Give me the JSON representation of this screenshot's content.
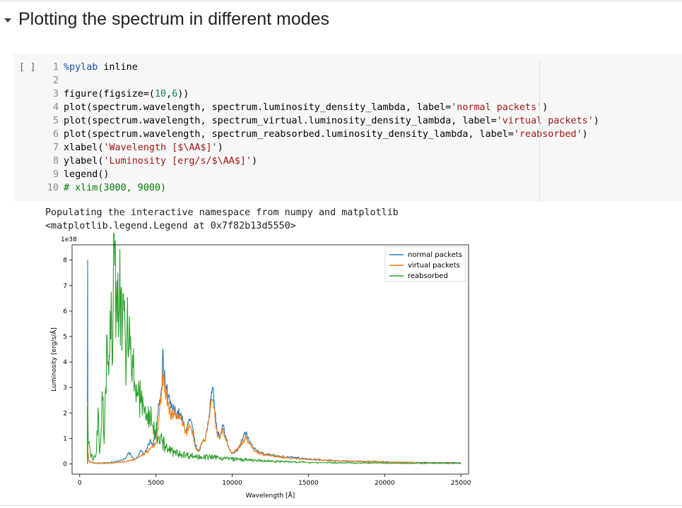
{
  "section": {
    "title": "Plotting the spectrum in different modes"
  },
  "code_cell": {
    "run_label": "[ ]",
    "lines": [
      {
        "n": "1",
        "parts": [
          {
            "t": "%pylab",
            "c": "#1a4fb0"
          },
          {
            "t": " inline",
            "c": "#000000"
          }
        ]
      },
      {
        "n": "2",
        "parts": []
      },
      {
        "n": "3",
        "parts": [
          {
            "t": "figure(figsize=(",
            "c": "#000000"
          },
          {
            "t": "10",
            "c": "#098658"
          },
          {
            "t": ",",
            "c": "#000000"
          },
          {
            "t": "6",
            "c": "#098658"
          },
          {
            "t": "))",
            "c": "#000000"
          }
        ]
      },
      {
        "n": "4",
        "parts": [
          {
            "t": "plot(spectrum.wavelength, spectrum.luminosity_density_lambda, label=",
            "c": "#000000"
          },
          {
            "t": "'normal packets'",
            "c": "#a31515"
          },
          {
            "t": ")",
            "c": "#000000"
          }
        ]
      },
      {
        "n": "5",
        "parts": [
          {
            "t": "plot(spectrum.wavelength, spectrum_virtual.luminosity_density_lambda, label=",
            "c": "#000000"
          },
          {
            "t": "'virtual packets'",
            "c": "#a31515"
          },
          {
            "t": ")",
            "c": "#000000"
          }
        ]
      },
      {
        "n": "6",
        "parts": [
          {
            "t": "plot(spectrum.wavelength, spectrum_reabsorbed.luminosity_density_lambda, label=",
            "c": "#000000"
          },
          {
            "t": "'reabsorbed'",
            "c": "#a31515"
          },
          {
            "t": ")",
            "c": "#000000"
          }
        ]
      },
      {
        "n": "7",
        "parts": [
          {
            "t": "xlabel(",
            "c": "#000000"
          },
          {
            "t": "'Wavelength [$\\AA$]'",
            "c": "#a31515"
          },
          {
            "t": ")",
            "c": "#000000"
          }
        ]
      },
      {
        "n": "8",
        "parts": [
          {
            "t": "ylabel(",
            "c": "#000000"
          },
          {
            "t": "'Luminosity [erg/s/$\\AA$]'",
            "c": "#a31515"
          },
          {
            "t": ")",
            "c": "#000000"
          }
        ]
      },
      {
        "n": "9",
        "parts": [
          {
            "t": "legend()",
            "c": "#000000"
          }
        ]
      },
      {
        "n": "10",
        "parts": [
          {
            "t": "# xlim(3000, 9000)",
            "c": "#008000"
          }
        ]
      }
    ]
  },
  "output": {
    "lines": [
      "Populating the interactive namespace from numpy and matplotlib",
      "<matplotlib.legend.Legend at 0x7f82b13d5550>"
    ]
  },
  "chart_data": {
    "type": "line",
    "xlabel": "Wavelength [Å]",
    "ylabel": "Luminosity [erg/s/Å]",
    "y_multiplier_label": "1e38",
    "xlim": [
      -500,
      25500
    ],
    "ylim": [
      -0.4,
      8.6
    ],
    "xticks": [
      0,
      5000,
      10000,
      15000,
      20000,
      25000
    ],
    "yticks": [
      0,
      1,
      2,
      3,
      4,
      5,
      6,
      7,
      8
    ],
    "legend_position": "top-right",
    "grid": false,
    "series": [
      {
        "name": "normal packets",
        "color": "#1f77b4",
        "points": [
          [
            500,
            0
          ],
          [
            520,
            8.0
          ],
          [
            540,
            0.5
          ],
          [
            600,
            0.1
          ],
          [
            1000,
            0.03
          ],
          [
            2000,
            0.05
          ],
          [
            2500,
            0.1
          ],
          [
            3000,
            0.2
          ],
          [
            3200,
            0.45
          ],
          [
            3400,
            0.3
          ],
          [
            3600,
            0.15
          ],
          [
            3800,
            0.3
          ],
          [
            4000,
            0.5
          ],
          [
            4200,
            0.4
          ],
          [
            4400,
            0.6
          ],
          [
            4600,
            0.9
          ],
          [
            4800,
            0.8
          ],
          [
            5000,
            1.2
          ],
          [
            5200,
            2.3
          ],
          [
            5400,
            3.0
          ],
          [
            5450,
            4.5
          ],
          [
            5500,
            3.5
          ],
          [
            5600,
            3.2
          ],
          [
            5800,
            2.6
          ],
          [
            6000,
            2.2
          ],
          [
            6200,
            2.1
          ],
          [
            6400,
            2.0
          ],
          [
            6600,
            1.9
          ],
          [
            6800,
            1.6
          ],
          [
            7000,
            1.3
          ],
          [
            7200,
            1.7
          ],
          [
            7400,
            1.4
          ],
          [
            7600,
            0.7
          ],
          [
            7800,
            0.5
          ],
          [
            8000,
            0.8
          ],
          [
            8200,
            0.9
          ],
          [
            8400,
            1.6
          ],
          [
            8600,
            2.5
          ],
          [
            8700,
            3.0
          ],
          [
            8800,
            2.5
          ],
          [
            9000,
            1.3
          ],
          [
            9200,
            1.0
          ],
          [
            9400,
            1.5
          ],
          [
            9600,
            1.0
          ],
          [
            9800,
            0.6
          ],
          [
            10000,
            0.4
          ],
          [
            10400,
            0.6
          ],
          [
            10700,
            1.0
          ],
          [
            10900,
            1.2
          ],
          [
            11100,
            0.9
          ],
          [
            11400,
            0.6
          ],
          [
            12000,
            0.4
          ],
          [
            13000,
            0.3
          ],
          [
            14000,
            0.25
          ],
          [
            15000,
            0.2
          ],
          [
            16000,
            0.15
          ],
          [
            17000,
            0.12
          ],
          [
            18000,
            0.1
          ],
          [
            19000,
            0.1
          ],
          [
            20000,
            0.08
          ],
          [
            21000,
            0.06
          ],
          [
            22000,
            0.05
          ],
          [
            23000,
            0.05
          ],
          [
            24000,
            0.05
          ],
          [
            25000,
            0.04
          ]
        ]
      },
      {
        "name": "virtual packets",
        "color": "#ff7f0e",
        "points": [
          [
            500,
            0
          ],
          [
            520,
            2.4
          ],
          [
            540,
            0.5
          ],
          [
            600,
            0.1
          ],
          [
            1000,
            0.02
          ],
          [
            2000,
            0.03
          ],
          [
            2500,
            0.05
          ],
          [
            3000,
            0.1
          ],
          [
            3500,
            0.15
          ],
          [
            4000,
            0.3
          ],
          [
            4500,
            0.5
          ],
          [
            5000,
            0.8
          ],
          [
            5200,
            1.8
          ],
          [
            5400,
            2.9
          ],
          [
            5500,
            3.7
          ],
          [
            5600,
            2.9
          ],
          [
            5800,
            2.3
          ],
          [
            6000,
            1.9
          ],
          [
            6200,
            2.0
          ],
          [
            6400,
            1.9
          ],
          [
            6600,
            1.8
          ],
          [
            6800,
            1.5
          ],
          [
            7000,
            1.2
          ],
          [
            7200,
            1.5
          ],
          [
            7400,
            1.3
          ],
          [
            7600,
            0.6
          ],
          [
            7800,
            0.5
          ],
          [
            8000,
            0.8
          ],
          [
            8200,
            0.9
          ],
          [
            8400,
            1.5
          ],
          [
            8600,
            2.3
          ],
          [
            8700,
            2.5
          ],
          [
            8800,
            2.2
          ],
          [
            9000,
            1.2
          ],
          [
            9200,
            1.0
          ],
          [
            9400,
            1.4
          ],
          [
            9600,
            0.9
          ],
          [
            9800,
            0.6
          ],
          [
            10000,
            0.4
          ],
          [
            10400,
            0.6
          ],
          [
            10700,
            0.9
          ],
          [
            10900,
            1.05
          ],
          [
            11100,
            0.85
          ],
          [
            11400,
            0.55
          ],
          [
            12000,
            0.38
          ],
          [
            13000,
            0.28
          ],
          [
            14000,
            0.22
          ],
          [
            15000,
            0.18
          ],
          [
            16000,
            0.14
          ],
          [
            17000,
            0.12
          ],
          [
            18000,
            0.1
          ],
          [
            19000,
            0.09
          ],
          [
            20000,
            0.07
          ],
          [
            21000,
            0.06
          ],
          [
            22000,
            0.05
          ],
          [
            23000,
            0.04
          ],
          [
            24000,
            0.04
          ],
          [
            25000,
            0.03
          ]
        ]
      },
      {
        "name": "reabsorbed",
        "color": "#2ca02c",
        "points": [
          [
            500,
            0
          ],
          [
            520,
            2.3
          ],
          [
            560,
            0.8
          ],
          [
            700,
            0.4
          ],
          [
            900,
            0.2
          ],
          [
            1100,
            0.5
          ],
          [
            1200,
            2.2
          ],
          [
            1300,
            0.4
          ],
          [
            1400,
            1.3
          ],
          [
            1500,
            2.5
          ],
          [
            1600,
            0.8
          ],
          [
            1700,
            3.0
          ],
          [
            1800,
            5.0
          ],
          [
            1900,
            3.5
          ],
          [
            2000,
            6.0
          ],
          [
            2100,
            5.2
          ],
          [
            2200,
            7.0
          ],
          [
            2300,
            7.8
          ],
          [
            2400,
            6.5
          ],
          [
            2500,
            7.5
          ],
          [
            2600,
            6.2
          ],
          [
            2700,
            6.8
          ],
          [
            2800,
            5.5
          ],
          [
            2900,
            6.0
          ],
          [
            3000,
            4.8
          ],
          [
            3100,
            5.2
          ],
          [
            3200,
            4.2
          ],
          [
            3300,
            4.5
          ],
          [
            3400,
            3.5
          ],
          [
            3500,
            3.8
          ],
          [
            3600,
            3.2
          ],
          [
            3800,
            2.8
          ],
          [
            4000,
            2.4
          ],
          [
            4200,
            2.2
          ],
          [
            4400,
            2.0
          ],
          [
            4600,
            1.7
          ],
          [
            4800,
            1.5
          ],
          [
            5000,
            1.3
          ],
          [
            5200,
            1.1
          ],
          [
            5400,
            0.9
          ],
          [
            5600,
            0.7
          ],
          [
            5800,
            0.55
          ],
          [
            6000,
            0.5
          ],
          [
            6500,
            0.4
          ],
          [
            7000,
            0.35
          ],
          [
            7500,
            0.3
          ],
          [
            8000,
            0.28
          ],
          [
            9000,
            0.25
          ],
          [
            10000,
            0.2
          ],
          [
            11000,
            0.15
          ],
          [
            12000,
            0.12
          ],
          [
            13000,
            0.1
          ],
          [
            14000,
            0.08
          ],
          [
            15000,
            0.06
          ],
          [
            16000,
            0.05
          ],
          [
            18000,
            0.04
          ],
          [
            20000,
            0.03
          ],
          [
            22000,
            0.03
          ],
          [
            25000,
            0.02
          ]
        ]
      }
    ]
  }
}
